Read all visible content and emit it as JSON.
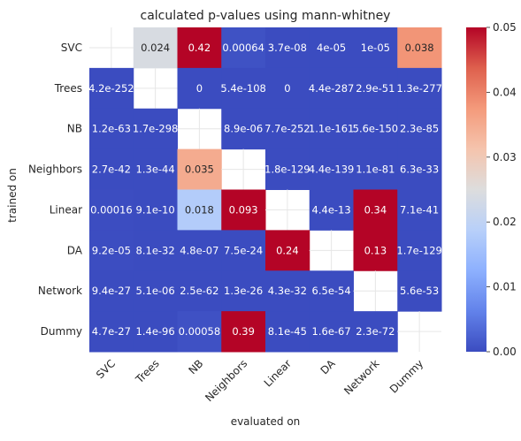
{
  "chart_data": {
    "type": "heatmap",
    "title": "calculated p-values using mann-whitney",
    "xlabel": "evaluated on",
    "ylabel": "trained on",
    "x_categories": [
      "SVC",
      "Trees",
      "NB",
      "Neighbors",
      "Linear",
      "DA",
      "Network",
      "Dummy"
    ],
    "y_categories": [
      "SVC",
      "Trees",
      "NB",
      "Neighbors",
      "Linear",
      "DA",
      "Network",
      "Dummy"
    ],
    "values": [
      [
        null,
        0.024,
        0.42,
        0.00064,
        3.7e-08,
        4e-05,
        1e-05,
        0.038
      ],
      [
        4.2e-252,
        null,
        0,
        5.4e-108,
        0,
        4.4e-287,
        2.9e-51,
        1.3e-277
      ],
      [
        1.2e-63,
        1.7e-298,
        null,
        8.9e-06,
        7.7e-252,
        1.1e-161,
        5.6e-150,
        2.3e-85
      ],
      [
        2.7e-42,
        1.3e-44,
        0.035,
        null,
        1.8e-129,
        4.4e-139,
        1.1e-81,
        6.3e-33
      ],
      [
        0.00016,
        9.1e-10,
        0.018,
        0.093,
        null,
        4.4e-13,
        0.34,
        7.1e-41
      ],
      [
        9.2e-05,
        8.1e-32,
        4.8e-07,
        7.5e-24,
        0.24,
        null,
        0.13,
        1.7e-129
      ],
      [
        9.4e-27,
        5.1e-06,
        2.5e-62,
        1.3e-26,
        4.3e-32,
        6.5e-54,
        null,
        5.6e-53
      ],
      [
        4.7e-27,
        1.4e-96,
        0.00058,
        0.39,
        8.1e-45,
        1.6e-67,
        2.3e-72,
        null
      ]
    ],
    "annotations": [
      [
        "",
        "0.024",
        "0.42",
        "0.00064",
        "3.7e-08",
        "4e-05",
        "1e-05",
        "0.038"
      ],
      [
        "4.2e-252",
        "",
        "0",
        "5.4e-108",
        "0",
        "4.4e-287",
        "2.9e-51",
        "1.3e-277"
      ],
      [
        "1.2e-63",
        "1.7e-298",
        "",
        "8.9e-06",
        "7.7e-252",
        "1.1e-161",
        "5.6e-150",
        "2.3e-85"
      ],
      [
        "2.7e-42",
        "1.3e-44",
        "0.035",
        "",
        "1.8e-129",
        "4.4e-139",
        "1.1e-81",
        "6.3e-33"
      ],
      [
        "0.00016",
        "9.1e-10",
        "0.018",
        "0.093",
        "",
        "4.4e-13",
        "0.34",
        "7.1e-41"
      ],
      [
        "9.2e-05",
        "8.1e-32",
        "4.8e-07",
        "7.5e-24",
        "0.24",
        "",
        "0.13",
        "1.7e-129"
      ],
      [
        "9.4e-27",
        "5.1e-06",
        "2.5e-62",
        "1.3e-26",
        "4.3e-32",
        "6.5e-54",
        "",
        "5.6e-53"
      ],
      [
        "4.7e-27",
        "1.4e-96",
        "0.00058",
        "0.39",
        "8.1e-45",
        "1.6e-67",
        "2.3e-72",
        ""
      ]
    ],
    "colormap": "coolwarm",
    "vmin": 0,
    "vmax": 0.05,
    "colorbar_ticks": [
      "0.00",
      "0.01",
      "0.02",
      "0.03",
      "0.04",
      "0.05"
    ],
    "colorbar_tick_values": [
      0,
      0.01,
      0.02,
      0.03,
      0.04,
      0.05
    ],
    "colors": {
      "low": "#3b4cc0",
      "mid": "#dddddd",
      "high": "#b40426",
      "grid": "#e6e6e6",
      "text": "#262626"
    }
  }
}
